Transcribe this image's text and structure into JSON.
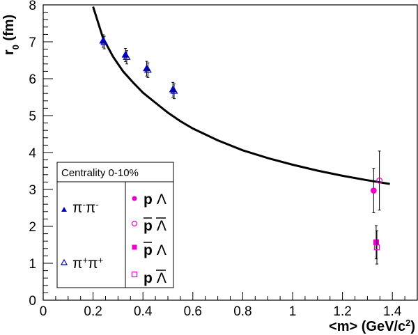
{
  "chart_data": {
    "type": "scatter",
    "title": "",
    "xlabel": "<m> (GeV/c",
    "xlabel_sup": "2",
    "xlabel_tail": ")",
    "ylabel": "r",
    "ylabel_sub": "0",
    "ylabel_tail": " (fm)",
    "xlim": [
      0,
      1.5
    ],
    "ylim": [
      0,
      8
    ],
    "x_ticks": [
      0,
      0.2,
      0.4,
      0.6,
      0.8,
      1,
      1.2,
      1.4
    ],
    "x_tick_labels": [
      "0",
      "0.2",
      "0.4",
      "0.6",
      "0.8",
      "1",
      "1.2",
      "1.4"
    ],
    "y_ticks": [
      0,
      1,
      2,
      3,
      4,
      5,
      6,
      7,
      8
    ],
    "y_tick_labels": [
      "0",
      "1",
      "2",
      "3",
      "4",
      "5",
      "6",
      "7",
      "8"
    ],
    "grid": false,
    "legend_position": "bottom-left",
    "legend_header": "Centrality 0-10%",
    "series": [
      {
        "name_parts": [
          "π",
          "-",
          "π",
          "-"
        ],
        "marker": "triangle-filled",
        "color": "#0000cc",
        "points": [
          {
            "x": 0.24,
            "y": 7.02,
            "err": 0.17
          },
          {
            "x": 0.33,
            "y": 6.64,
            "err": 0.18
          },
          {
            "x": 0.415,
            "y": 6.27,
            "err": 0.2
          },
          {
            "x": 0.52,
            "y": 5.7,
            "err": 0.2
          }
        ]
      },
      {
        "name_parts": [
          "π",
          "+",
          "π",
          "+"
        ],
        "marker": "triangle-open",
        "color": "#0000cc",
        "points": [
          {
            "x": 0.245,
            "y": 6.98,
            "err": 0.17
          },
          {
            "x": 0.335,
            "y": 6.58,
            "err": 0.18
          },
          {
            "x": 0.42,
            "y": 6.23,
            "err": 0.2
          },
          {
            "x": 0.525,
            "y": 5.66,
            "err": 0.2
          }
        ]
      },
      {
        "name": "p Λ",
        "marker": "circle-filled",
        "color": "#ee00cc",
        "points": [
          {
            "x": 1.325,
            "y": 2.97,
            "err": 0.6
          }
        ]
      },
      {
        "name": "p̄ Λ̄",
        "marker": "circle-open",
        "color": "#ee00cc",
        "points": [
          {
            "x": 1.348,
            "y": 3.24,
            "err": 0.8
          }
        ]
      },
      {
        "name": "p̄ Λ",
        "marker": "square-filled",
        "color": "#ee00cc",
        "points": [
          {
            "x": 1.335,
            "y": 1.57,
            "err": 0.45
          }
        ]
      },
      {
        "name": "p Λ̄",
        "marker": "square-open",
        "color": "#ee00cc",
        "points": [
          {
            "x": 1.338,
            "y": 1.43,
            "err": 0.45
          }
        ]
      }
    ],
    "curve": {
      "color": "#000000",
      "points": [
        [
          0.2,
          7.95
        ],
        [
          0.24,
          7.1
        ],
        [
          0.28,
          6.6
        ],
        [
          0.32,
          6.2
        ],
        [
          0.36,
          5.9
        ],
        [
          0.4,
          5.62
        ],
        [
          0.45,
          5.35
        ],
        [
          0.5,
          5.08
        ],
        [
          0.55,
          4.85
        ],
        [
          0.6,
          4.65
        ],
        [
          0.7,
          4.33
        ],
        [
          0.8,
          4.06
        ],
        [
          0.9,
          3.85
        ],
        [
          1.0,
          3.67
        ],
        [
          1.1,
          3.51
        ],
        [
          1.2,
          3.37
        ],
        [
          1.3,
          3.25
        ],
        [
          1.39,
          3.15
        ]
      ]
    }
  }
}
